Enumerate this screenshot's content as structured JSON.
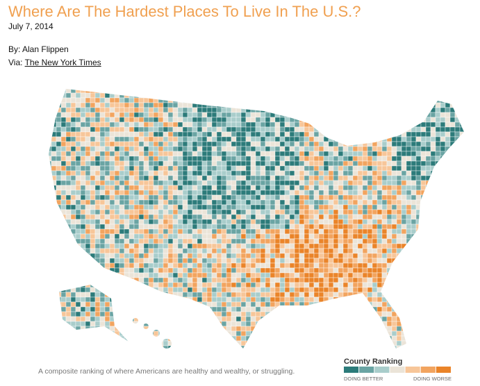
{
  "header": {
    "title": "Where Are The Hardest Places To Live In The U.S.?",
    "date": "July 7, 2014"
  },
  "byline": {
    "author": "By: Alan Flippen",
    "via_label": "Via:",
    "via_link": "The New York Times"
  },
  "map": {
    "caption": "A composite ranking of where Americans are healthy and wealthy, or struggling.",
    "legend": {
      "title": "County Ranking",
      "low_label": "DOING BETTER",
      "high_label": "DOING WORSE",
      "colors": [
        "#2c7b7a",
        "#6aa4a3",
        "#a9cdcb",
        "#ebe4d8",
        "#f7c699",
        "#f2a45f",
        "#ea8429"
      ]
    }
  }
}
